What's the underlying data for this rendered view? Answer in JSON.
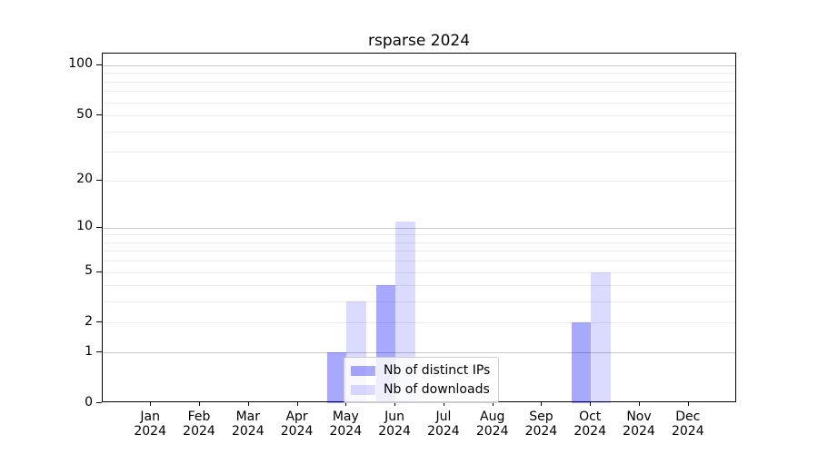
{
  "chart_data": {
    "type": "bar",
    "title": "rsparse 2024",
    "categories": [
      "Jan 2024",
      "Feb 2024",
      "Mar 2024",
      "Apr 2024",
      "May 2024",
      "Jun 2024",
      "Jul 2024",
      "Aug 2024",
      "Sep 2024",
      "Oct 2024",
      "Nov 2024",
      "Dec 2024"
    ],
    "series": [
      {
        "name": "Nb of distinct IPs",
        "color": "rgba(0,0,255,0.34)",
        "values": [
          0,
          0,
          0,
          0,
          1,
          4,
          0,
          0,
          0,
          2,
          0,
          0
        ]
      },
      {
        "name": "Nb of downloads",
        "color": "rgba(0,0,255,0.14)",
        "values": [
          0,
          0,
          0,
          0,
          3,
          11,
          0,
          0,
          0,
          5,
          0,
          0
        ]
      }
    ],
    "xlabel": "",
    "ylabel": "",
    "yscale": "log1p",
    "yticks": [
      0,
      1,
      2,
      5,
      10,
      20,
      50,
      100
    ],
    "ylim": [
      0,
      118
    ],
    "major_gridlines": [
      1,
      10,
      100
    ],
    "minor_gridlines": [
      2,
      3,
      4,
      5,
      6,
      7,
      8,
      9,
      20,
      30,
      40,
      50,
      60,
      70,
      80,
      90
    ],
    "grid": true,
    "legend_position": "lower center",
    "axis_color": "#000000",
    "major_grid_color": "#c6c6c6",
    "minor_grid_color": "#ebebeb"
  }
}
